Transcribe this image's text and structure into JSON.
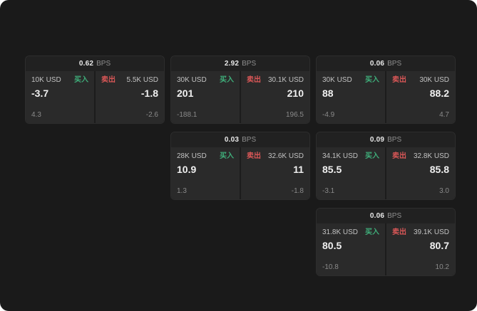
{
  "colors": {
    "background": "#1a1a1a",
    "buy": "#3fae7a",
    "sell": "#d95757"
  },
  "cards": [
    {
      "spread": "0.62",
      "unit": "BPS",
      "buy": {
        "amount": "10K USD",
        "label": "买入",
        "price": "-3.7",
        "delta": "4.3"
      },
      "sell": {
        "label": "卖出",
        "amount": "5.5K USD",
        "price": "-1.8",
        "delta": "-2.6"
      }
    },
    {
      "spread": "2.92",
      "unit": "BPS",
      "buy": {
        "amount": "30K USD",
        "label": "买入",
        "price": "201",
        "delta": "-188.1"
      },
      "sell": {
        "label": "卖出",
        "amount": "30.1K USD",
        "price": "210",
        "delta": "196.5"
      }
    },
    {
      "spread": "0.06",
      "unit": "BPS",
      "buy": {
        "amount": "30K USD",
        "label": "买入",
        "price": "88",
        "delta": "-4.9"
      },
      "sell": {
        "label": "卖出",
        "amount": "30K USD",
        "price": "88.2",
        "delta": "4.7"
      }
    },
    {
      "spread": "0.03",
      "unit": "BPS",
      "buy": {
        "amount": "28K USD",
        "label": "买入",
        "price": "10.9",
        "delta": "1.3"
      },
      "sell": {
        "label": "卖出",
        "amount": "32.6K USD",
        "price": "11",
        "delta": "-1.8"
      }
    },
    {
      "spread": "0.09",
      "unit": "BPS",
      "buy": {
        "amount": "34.1K USD",
        "label": "买入",
        "price": "85.5",
        "delta": "-3.1"
      },
      "sell": {
        "label": "卖出",
        "amount": "32.8K USD",
        "price": "85.8",
        "delta": "3.0"
      }
    },
    {
      "spread": "0.06",
      "unit": "BPS",
      "buy": {
        "amount": "31.8K USD",
        "label": "买入",
        "price": "80.5",
        "delta": "-10.8"
      },
      "sell": {
        "label": "卖出",
        "amount": "39.1K USD",
        "price": "80.7",
        "delta": "10.2"
      }
    }
  ]
}
